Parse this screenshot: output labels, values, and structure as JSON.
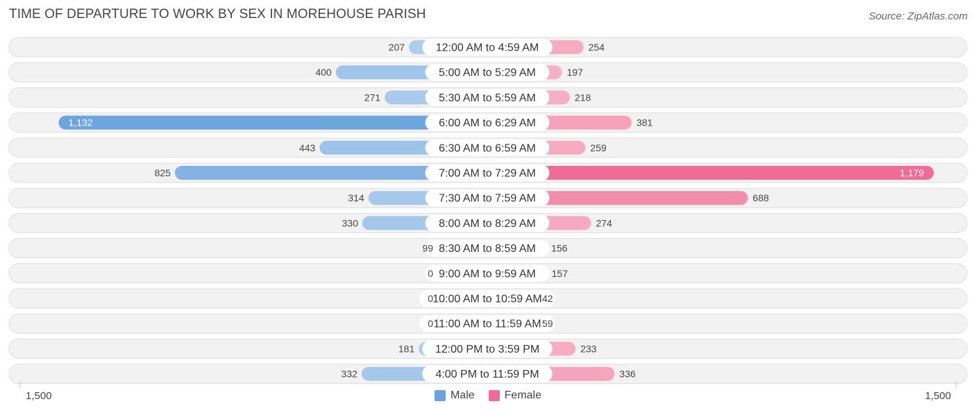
{
  "title": "TIME OF DEPARTURE TO WORK BY SEX IN MOREHOUSE PARISH",
  "source": "Source: ZipAtlas.com",
  "axis": {
    "left_label": "1,500",
    "right_label": "1,500"
  },
  "legend": {
    "male_label": "Male",
    "female_label": "Female",
    "male_color": "#6aa3de",
    "female_color": "#f06b96"
  },
  "chart_data": {
    "type": "bar",
    "orientation": "horizontal-diverging",
    "title": "TIME OF DEPARTURE TO WORK BY SEX IN MOREHOUSE PARISH",
    "xlim": [
      -1500,
      1500
    ],
    "categories": [
      "12:00 AM to 4:59 AM",
      "5:00 AM to 5:29 AM",
      "5:30 AM to 5:59 AM",
      "6:00 AM to 6:29 AM",
      "6:30 AM to 6:59 AM",
      "7:00 AM to 7:29 AM",
      "7:30 AM to 7:59 AM",
      "8:00 AM to 8:29 AM",
      "8:30 AM to 8:59 AM",
      "9:00 AM to 9:59 AM",
      "10:00 AM to 10:59 AM",
      "11:00 AM to 11:59 AM",
      "12:00 PM to 3:59 PM",
      "4:00 PM to 11:59 PM"
    ],
    "series": [
      {
        "name": "Male",
        "values": [
          207,
          400,
          271,
          1132,
          443,
          825,
          314,
          330,
          99,
          0,
          0,
          0,
          181,
          332
        ],
        "labels": [
          "207",
          "400",
          "271",
          "1,132",
          "443",
          "825",
          "314",
          "330",
          "99",
          "0",
          "0",
          "0",
          "181",
          "332"
        ]
      },
      {
        "name": "Female",
        "values": [
          254,
          197,
          218,
          381,
          259,
          1179,
          688,
          274,
          156,
          157,
          42,
          59,
          233,
          336
        ],
        "labels": [
          "254",
          "197",
          "218",
          "381",
          "259",
          "1,179",
          "688",
          "274",
          "156",
          "157",
          "42",
          "59",
          "233",
          "336"
        ]
      }
    ]
  }
}
